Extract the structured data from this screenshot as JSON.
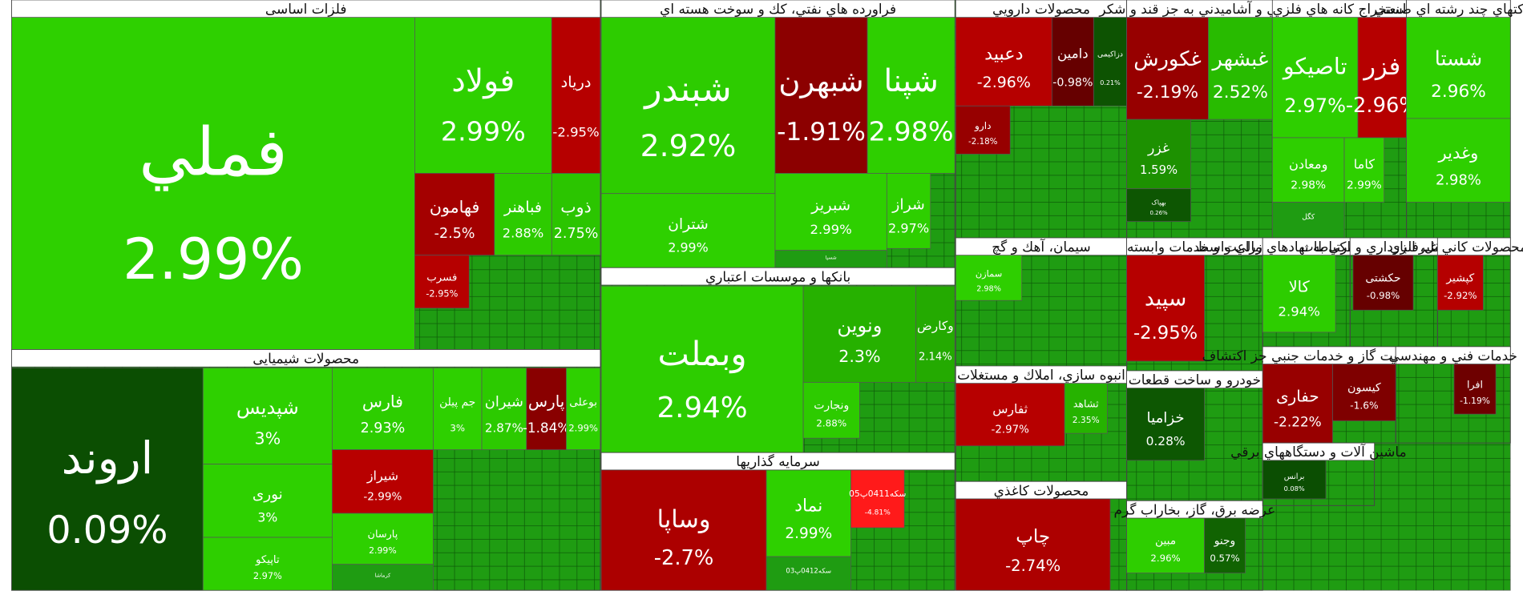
{
  "chart_data": {
    "type": "treemap",
    "sectors": [
      {
        "name": "فلزات اساسی",
        "labels": [
          "فملي",
          "فولاد",
          "دریاد",
          "فهامون",
          "فباهنر",
          "ذوب",
          "فسرب"
        ],
        "values": [
          2.99,
          2.99,
          -2.95,
          -2.5,
          2.88,
          2.75,
          -2.95
        ],
        "value_labels": [
          "2.99%",
          "2.99%",
          "-2.95%",
          "-2.5%",
          "2.88%",
          "2.75%",
          "-2.95%"
        ]
      },
      {
        "name": "محصولات شیمیایی",
        "labels": [
          "اروند",
          "شپدیس",
          "نوری",
          "تاپیکو",
          "فارس",
          "جم پیلن",
          "شیران",
          "پارس",
          "بوعلی",
          "شیراز",
          "پارسان",
          "کرماشا"
        ],
        "values": [
          0.09,
          3,
          3,
          2.97,
          2.93,
          3,
          2.87,
          -1.84,
          2.99,
          -2.99,
          2.99,
          null
        ],
        "value_labels": [
          "0.09%",
          "3%",
          "3%",
          "2.97%",
          "2.93%",
          "3%",
          "2.87%",
          "-1.84%",
          "2.99%",
          "-2.99%",
          "2.99%",
          null
        ]
      },
      {
        "name": "فراورده هاي نفتي، كك و سوخت هسته اي",
        "labels": [
          "شبندر",
          "شتران",
          "شبهرن",
          "شپنا",
          "شبریز",
          "شراز",
          "شسپا"
        ],
        "values": [
          2.92,
          2.99,
          -1.91,
          2.98,
          2.99,
          2.97,
          null
        ],
        "value_labels": [
          "2.92%",
          "2.99%",
          "-1.91%",
          "2.98%",
          "2.99%",
          "2.97%",
          null
        ]
      },
      {
        "name": "بانكها و موسسات اعتباري",
        "labels": [
          "وبملت",
          "ونوین",
          "وكارض",
          "ونجارت"
        ],
        "values": [
          2.94,
          2.3,
          2.14,
          2.88
        ],
        "value_labels": [
          "2.94%",
          "2.3%",
          "2.14%",
          "2.88%"
        ]
      },
      {
        "name": "سرمايه گذاريها",
        "labels": [
          "وساپا",
          "نماد",
          "سکه0411پ05",
          "سکه0412پ03"
        ],
        "values": [
          -2.7,
          2.99,
          -4.81,
          null
        ],
        "value_labels": [
          "-2.7%",
          "2.99%",
          "-4.81%",
          null
        ]
      },
      {
        "name": "محصولات دارويي",
        "labels": [
          "دعبید",
          "دامین",
          "دزاکیمی",
          "دارو"
        ],
        "values": [
          -2.96,
          -0.98,
          0.21,
          -2.18
        ],
        "value_labels": [
          "-2.96%",
          "-0.98%",
          "0.21%",
          "-2.18%"
        ]
      },
      {
        "name": "غذايي و آشاميدني به جز قند و شكر",
        "labels": [
          "غکورش",
          "غبشهر",
          "غزر",
          "بهپاک"
        ],
        "values": [
          -2.19,
          2.52,
          1.59,
          0.26
        ],
        "value_labels": [
          "-2.19%",
          "2.52%",
          "1.59%",
          "0.26%"
        ]
      },
      {
        "name": "استخراج كانه هاي فلزي",
        "labels": [
          "تاصیکو",
          "فزر",
          "ومعادن",
          "کاما",
          "کگل"
        ],
        "values": [
          2.97,
          -2.96,
          2.98,
          2.99,
          null
        ],
        "value_labels": [
          "2.97%",
          "-2.96%",
          "2.98%",
          "2.99%",
          null
        ]
      },
      {
        "name": "شركتهاي چند رشته اي صنعتي",
        "labels": [
          "شستا",
          "وغدیر"
        ],
        "values": [
          2.96,
          2.98
        ],
        "value_labels": [
          "2.96%",
          "2.98%"
        ]
      },
      {
        "name": "سيمان، آهك و گچ",
        "labels": [
          "سمازن"
        ],
        "values": [
          2.98
        ],
        "value_labels": [
          "2.98%"
        ]
      },
      {
        "name": "انبوه سازي، املاك و مستغلات",
        "labels": [
          "ثفارس",
          "ثشاهد"
        ],
        "values": [
          -2.97,
          2.35
        ],
        "value_labels": [
          "-2.97%",
          "2.35%"
        ]
      },
      {
        "name": "محصولات كاغذي",
        "labels": [
          "چاپ"
        ],
        "values": [
          -2.74
        ],
        "value_labels": [
          "-2.74%"
        ]
      },
      {
        "name": "زراعت و خدمات وابسته",
        "labels": [
          "سپید"
        ],
        "values": [
          -2.95
        ],
        "value_labels": [
          "-2.95%"
        ]
      },
      {
        "name": "خودرو و ساخت قطعات",
        "labels": [
          "خزامیا"
        ],
        "values": [
          0.28
        ],
        "value_labels": [
          "0.28%"
        ]
      },
      {
        "name": "عرضه برق، گاز، بخاراب گرم",
        "labels": [
          "مبین",
          "وجنو"
        ],
        "values": [
          2.96,
          0.57
        ],
        "value_labels": [
          "2.96%",
          "0.57%"
        ]
      },
      {
        "name": "فعاليتهاي كمكي به نهادهاي مالي واسط",
        "labels": [
          "کالا"
        ],
        "values": [
          2.94
        ],
        "value_labels": [
          "2.94%"
        ]
      },
      {
        "name": "حمل و نقل، انبارداري و ارتباطات",
        "labels": [
          "حکشتی"
        ],
        "values": [
          -0.98
        ],
        "value_labels": [
          "-0.98%"
        ]
      },
      {
        "name": "ساير محصولات كاني غيرفلزي",
        "labels": [
          "کپشیر"
        ],
        "values": [
          -2.92
        ],
        "value_labels": [
          "-2.92%"
        ]
      },
      {
        "name": "استخراج نفت گاز و خدمات جنبي جز اكتشاف",
        "labels": [
          "حفاری",
          "کیسون"
        ],
        "values": [
          -2.22,
          -1.6
        ],
        "value_labels": [
          "-2.22%",
          "-1.6%"
        ]
      },
      {
        "name": "خدمات فني و مهندسي",
        "labels": [
          "افرا"
        ],
        "values": [
          -1.19
        ],
        "value_labels": [
          "-1.19%"
        ]
      },
      {
        "name": "ماشين آلات و دستگاههاي برقي",
        "labels": [
          "برانس"
        ],
        "values": [
          0.08
        ],
        "value_labels": [
          "0.08%"
        ]
      }
    ]
  }
}
